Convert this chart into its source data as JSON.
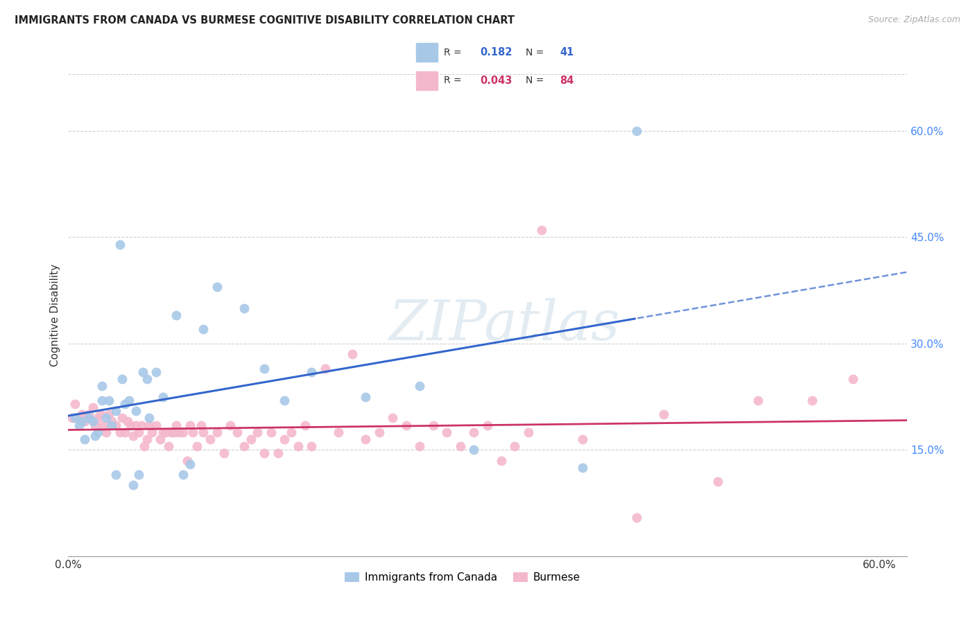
{
  "title": "IMMIGRANTS FROM CANADA VS BURMESE COGNITIVE DISABILITY CORRELATION CHART",
  "source": "Source: ZipAtlas.com",
  "ylabel": "Cognitive Disability",
  "xlim": [
    0.0,
    0.62
  ],
  "ylim": [
    0.0,
    0.68
  ],
  "yticks": [
    0.15,
    0.3,
    0.45,
    0.6
  ],
  "ytick_labels": [
    "15.0%",
    "30.0%",
    "45.0%",
    "60.0%"
  ],
  "canada_R": 0.182,
  "canada_N": 41,
  "burmese_R": 0.043,
  "burmese_N": 84,
  "canada_color": "#a8c8e8",
  "burmese_color": "#f4b8cc",
  "canada_line_color": "#3366cc",
  "burmese_line_color": "#cc3366",
  "background_color": "#ffffff",
  "grid_color": "#d0d0d0",
  "canada_x": [
    0.005,
    0.008,
    0.01,
    0.012,
    0.015,
    0.018,
    0.02,
    0.022,
    0.025,
    0.025,
    0.028,
    0.03,
    0.032,
    0.035,
    0.035,
    0.038,
    0.04,
    0.042,
    0.045,
    0.048,
    0.05,
    0.052,
    0.055,
    0.058,
    0.06,
    0.065,
    0.07,
    0.08,
    0.085,
    0.09,
    0.1,
    0.11,
    0.13,
    0.145,
    0.16,
    0.18,
    0.22,
    0.26,
    0.3,
    0.38,
    0.42
  ],
  "canada_y": [
    0.195,
    0.185,
    0.19,
    0.165,
    0.195,
    0.19,
    0.17,
    0.175,
    0.22,
    0.24,
    0.195,
    0.22,
    0.185,
    0.205,
    0.115,
    0.44,
    0.25,
    0.215,
    0.22,
    0.1,
    0.205,
    0.115,
    0.26,
    0.25,
    0.195,
    0.26,
    0.225,
    0.34,
    0.115,
    0.13,
    0.32,
    0.38,
    0.35,
    0.265,
    0.22,
    0.26,
    0.225,
    0.24,
    0.15,
    0.125,
    0.6
  ],
  "burmese_x": [
    0.003,
    0.005,
    0.008,
    0.01,
    0.012,
    0.015,
    0.018,
    0.02,
    0.022,
    0.024,
    0.026,
    0.028,
    0.03,
    0.032,
    0.035,
    0.038,
    0.04,
    0.042,
    0.044,
    0.046,
    0.048,
    0.05,
    0.052,
    0.054,
    0.056,
    0.058,
    0.06,
    0.062,
    0.065,
    0.068,
    0.07,
    0.072,
    0.074,
    0.076,
    0.078,
    0.08,
    0.082,
    0.085,
    0.088,
    0.09,
    0.092,
    0.095,
    0.098,
    0.1,
    0.105,
    0.11,
    0.115,
    0.12,
    0.125,
    0.13,
    0.135,
    0.14,
    0.145,
    0.15,
    0.155,
    0.16,
    0.165,
    0.17,
    0.175,
    0.18,
    0.19,
    0.2,
    0.21,
    0.22,
    0.23,
    0.24,
    0.25,
    0.26,
    0.27,
    0.28,
    0.29,
    0.3,
    0.31,
    0.32,
    0.33,
    0.34,
    0.35,
    0.38,
    0.42,
    0.44,
    0.48,
    0.51,
    0.55,
    0.58
  ],
  "burmese_y": [
    0.195,
    0.215,
    0.195,
    0.2,
    0.19,
    0.2,
    0.21,
    0.185,
    0.195,
    0.2,
    0.185,
    0.175,
    0.2,
    0.19,
    0.185,
    0.175,
    0.195,
    0.175,
    0.19,
    0.185,
    0.17,
    0.185,
    0.175,
    0.185,
    0.155,
    0.165,
    0.185,
    0.175,
    0.185,
    0.165,
    0.175,
    0.175,
    0.155,
    0.175,
    0.175,
    0.185,
    0.175,
    0.175,
    0.135,
    0.185,
    0.175,
    0.155,
    0.185,
    0.175,
    0.165,
    0.175,
    0.145,
    0.185,
    0.175,
    0.155,
    0.165,
    0.175,
    0.145,
    0.175,
    0.145,
    0.165,
    0.175,
    0.155,
    0.185,
    0.155,
    0.265,
    0.175,
    0.285,
    0.165,
    0.175,
    0.195,
    0.185,
    0.155,
    0.185,
    0.175,
    0.155,
    0.175,
    0.185,
    0.135,
    0.155,
    0.175,
    0.46,
    0.165,
    0.055,
    0.2,
    0.105,
    0.22,
    0.22,
    0.25
  ]
}
